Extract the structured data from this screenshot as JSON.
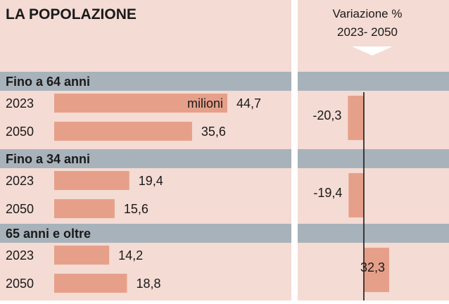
{
  "title": "LA POPOLAZIONE",
  "right_header": {
    "line1": "Variazione %",
    "line2": "2023- 2050"
  },
  "unit_label": "milioni",
  "colors": {
    "panel_bg": "#f4dbd3",
    "group_bar": "#a8b2ba",
    "bar": "#e6a08a",
    "text": "#1a1a1a",
    "axis": "#1a1a1a"
  },
  "chart_data": [
    {
      "type": "bar",
      "orientation": "horizontal",
      "title": "LA POPOLAZIONE",
      "unit": "milioni",
      "groups": [
        {
          "name": "Fino a 64 anni",
          "rows": [
            {
              "year": "2023",
              "value": 44.7,
              "label": "44,7"
            },
            {
              "year": "2050",
              "value": 35.6,
              "label": "35,6"
            }
          ]
        },
        {
          "name": "Fino a 34 anni",
          "rows": [
            {
              "year": "2023",
              "value": 19.4,
              "label": "19,4"
            },
            {
              "year": "2050",
              "value": 15.6,
              "label": "15,6"
            }
          ]
        },
        {
          "name": "65 anni e oltre",
          "rows": [
            {
              "year": "2023",
              "value": 14.2,
              "label": "14,2"
            },
            {
              "year": "2050",
              "value": 18.8,
              "label": "18,8"
            }
          ]
        }
      ]
    },
    {
      "type": "bar",
      "orientation": "horizontal",
      "title": "Variazione % 2023- 2050",
      "values": [
        {
          "group": "Fino a 64 anni",
          "value": -20.3,
          "label": "-20,3"
        },
        {
          "group": "Fino a 34 anni",
          "value": -19.4,
          "label": "-19,4"
        },
        {
          "group": "65 anni e oltre",
          "value": 32.3,
          "label": "32,3"
        }
      ]
    }
  ]
}
